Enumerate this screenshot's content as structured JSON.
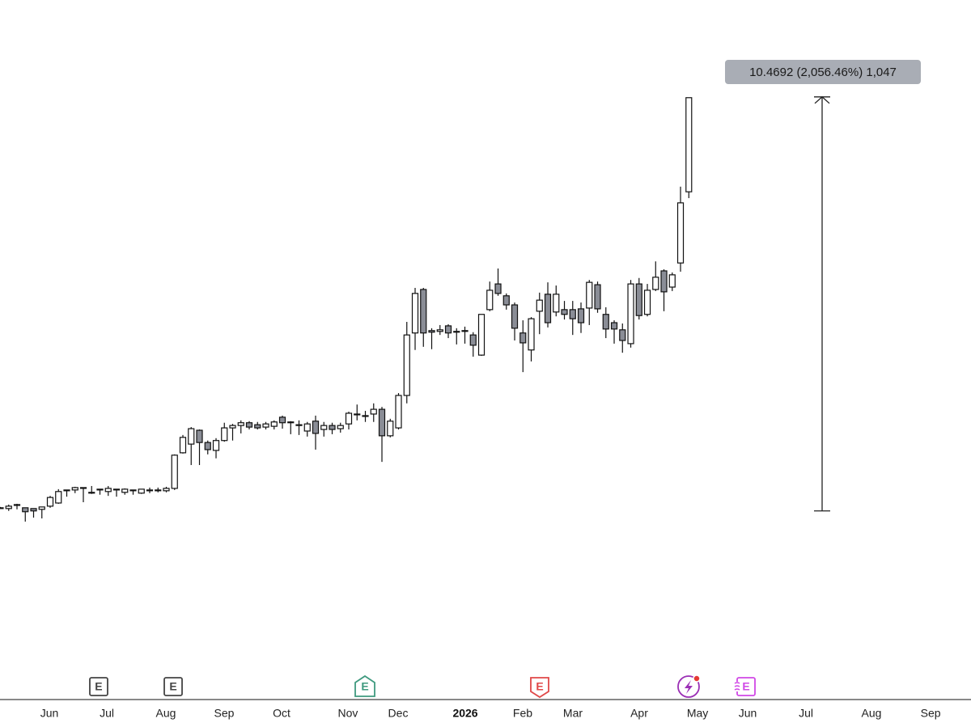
{
  "chart_data": {
    "type": "candlestick",
    "ylim": [
      -4.26,
      13.43
    ],
    "xlim": [
      0,
      117.07
    ],
    "xticks": [
      {
        "value": 5.95,
        "label": "Jun"
      },
      {
        "value": 12.88,
        "label": "Jul"
      },
      {
        "value": 20.0,
        "label": "Aug"
      },
      {
        "value": 27.02,
        "label": "Sep"
      },
      {
        "value": 33.95,
        "label": "Oct"
      },
      {
        "value": 41.95,
        "label": "Nov"
      },
      {
        "value": 48.0,
        "label": "Dec"
      },
      {
        "value": 56.1,
        "label": "2026"
      },
      {
        "value": 63.02,
        "label": "Feb"
      },
      {
        "value": 69.07,
        "label": "Mar"
      },
      {
        "value": 77.07,
        "label": "Apr"
      },
      {
        "value": 84.1,
        "label": "May"
      },
      {
        "value": 90.15,
        "label": "Jun"
      },
      {
        "value": 97.17,
        "label": "Jul"
      },
      {
        "value": 105.07,
        "label": "Aug"
      },
      {
        "value": 112.2,
        "label": "Sep"
      }
    ],
    "up_color": "#ffffff",
    "down_color": "#8a8d96",
    "candles": [
      [
        0.59,
        0.61,
        0.57,
        0.59
      ],
      [
        0.57,
        0.67,
        0.51,
        0.63
      ],
      [
        0.67,
        0.69,
        0.55,
        0.67
      ],
      [
        0.59,
        0.59,
        0.24,
        0.49
      ],
      [
        0.57,
        0.57,
        0.34,
        0.51
      ],
      [
        0.55,
        0.61,
        0.32,
        0.61
      ],
      [
        0.63,
        0.89,
        0.59,
        0.85
      ],
      [
        0.71,
        1.06,
        0.69,
        1.0
      ],
      [
        1.04,
        1.04,
        0.87,
        1.04
      ],
      [
        1.04,
        1.12,
        0.96,
        1.1
      ],
      [
        1.1,
        1.1,
        0.73,
        1.1
      ],
      [
        0.98,
        1.14,
        0.94,
        0.98
      ],
      [
        1.06,
        1.06,
        0.92,
        1.06
      ],
      [
        1.0,
        1.14,
        0.89,
        1.08
      ],
      [
        1.06,
        1.06,
        0.87,
        1.06
      ],
      [
        0.98,
        1.08,
        0.92,
        1.06
      ],
      [
        1.04,
        1.04,
        0.92,
        1.04
      ],
      [
        0.96,
        1.06,
        0.94,
        1.06
      ],
      [
        1.04,
        1.1,
        0.96,
        1.04
      ],
      [
        1.04,
        1.1,
        0.98,
        1.04
      ],
      [
        1.02,
        1.12,
        0.98,
        1.08
      ],
      [
        1.08,
        1.94,
        1.04,
        1.92
      ],
      [
        1.98,
        2.43,
        1.96,
        2.37
      ],
      [
        2.2,
        2.63,
        1.67,
        2.59
      ],
      [
        2.55,
        2.57,
        1.67,
        2.24
      ],
      [
        2.24,
        2.29,
        1.94,
        2.06
      ],
      [
        2.04,
        2.35,
        1.84,
        2.29
      ],
      [
        2.29,
        2.74,
        2.26,
        2.61
      ],
      [
        2.61,
        2.71,
        2.29,
        2.67
      ],
      [
        2.67,
        2.8,
        2.47,
        2.74
      ],
      [
        2.74,
        2.78,
        2.57,
        2.63
      ],
      [
        2.69,
        2.76,
        2.57,
        2.61
      ],
      [
        2.63,
        2.76,
        2.57,
        2.71
      ],
      [
        2.65,
        2.8,
        2.57,
        2.76
      ],
      [
        2.88,
        2.92,
        2.59,
        2.74
      ],
      [
        2.76,
        2.78,
        2.45,
        2.76
      ],
      [
        2.69,
        2.8,
        2.43,
        2.69
      ],
      [
        2.53,
        2.76,
        2.39,
        2.71
      ],
      [
        2.78,
        2.92,
        2.06,
        2.47
      ],
      [
        2.57,
        2.76,
        2.39,
        2.67
      ],
      [
        2.67,
        2.74,
        2.45,
        2.57
      ],
      [
        2.59,
        2.74,
        2.49,
        2.67
      ],
      [
        2.71,
        3.02,
        2.57,
        2.98
      ],
      [
        2.96,
        3.2,
        2.8,
        2.96
      ],
      [
        2.92,
        3.04,
        2.76,
        2.92
      ],
      [
        2.96,
        3.23,
        2.76,
        3.08
      ],
      [
        3.08,
        3.14,
        1.75,
        2.41
      ],
      [
        2.41,
        2.84,
        2.37,
        2.78
      ],
      [
        2.61,
        3.49,
        2.57,
        3.43
      ],
      [
        3.43,
        5.29,
        3.23,
        4.96
      ],
      [
        5.01,
        6.15,
        4.58,
        6.01
      ],
      [
        6.11,
        6.15,
        4.66,
        5.01
      ],
      [
        5.07,
        5.13,
        4.6,
        5.03
      ],
      [
        5.05,
        5.21,
        4.96,
        5.09
      ],
      [
        5.19,
        5.23,
        4.88,
        5.01
      ],
      [
        5.05,
        5.13,
        4.72,
        5.05
      ],
      [
        5.07,
        5.17,
        4.74,
        5.07
      ],
      [
        4.96,
        5.03,
        4.41,
        4.7
      ],
      [
        4.45,
        5.48,
        4.43,
        5.48
      ],
      [
        5.6,
        6.31,
        5.56,
        6.09
      ],
      [
        6.25,
        6.64,
        5.95,
        6.01
      ],
      [
        5.95,
        6.01,
        5.6,
        5.72
      ],
      [
        5.72,
        5.78,
        4.82,
        5.13
      ],
      [
        5.01,
        5.33,
        4.02,
        4.76
      ],
      [
        4.58,
        5.41,
        4.29,
        5.37
      ],
      [
        5.56,
        6.03,
        4.98,
        5.84
      ],
      [
        5.99,
        6.29,
        5.15,
        5.27
      ],
      [
        5.54,
        6.21,
        5.43,
        5.99
      ],
      [
        5.6,
        5.82,
        5.35,
        5.48
      ],
      [
        5.6,
        5.82,
        4.96,
        5.37
      ],
      [
        5.62,
        5.78,
        5.01,
        5.27
      ],
      [
        5.64,
        6.35,
        5.21,
        6.29
      ],
      [
        6.23,
        6.31,
        5.52,
        5.62
      ],
      [
        5.48,
        5.66,
        4.88,
        5.11
      ],
      [
        5.27,
        5.33,
        4.74,
        5.11
      ],
      [
        5.09,
        5.25,
        4.51,
        4.82
      ],
      [
        4.74,
        6.35,
        4.64,
        6.25
      ],
      [
        6.25,
        6.4,
        5.35,
        5.45
      ],
      [
        5.48,
        6.25,
        5.43,
        6.09
      ],
      [
        6.11,
        6.82,
        6.07,
        6.42
      ],
      [
        6.58,
        6.62,
        5.56,
        6.05
      ],
      [
        6.17,
        6.54,
        6.07,
        6.48
      ],
      [
        6.78,
        8.71,
        6.56,
        8.3
      ],
      [
        8.58,
        10.96,
        8.42,
        10.96
      ]
    ],
    "measure": {
      "label": "10.4692 (2,056.46%) 1,047",
      "x": 99.12,
      "from": 0.51,
      "to": 10.98
    },
    "events": [
      {
        "label": "E",
        "x": 11.9,
        "color": "#444444",
        "shape": "box"
      },
      {
        "label": "E",
        "x": 20.88,
        "color": "#444444",
        "shape": "box"
      },
      {
        "label": "E",
        "x": 44.0,
        "color": "#3f9a7f",
        "shape": "shield"
      },
      {
        "label": "E",
        "x": 65.07,
        "color": "#e04848",
        "shape": "tag"
      },
      {
        "x": 83.02,
        "color": "#9b2fb5",
        "shape": "bolt"
      },
      {
        "label": "E",
        "x": 89.95,
        "color": "#d048e6",
        "shape": "split"
      }
    ]
  }
}
